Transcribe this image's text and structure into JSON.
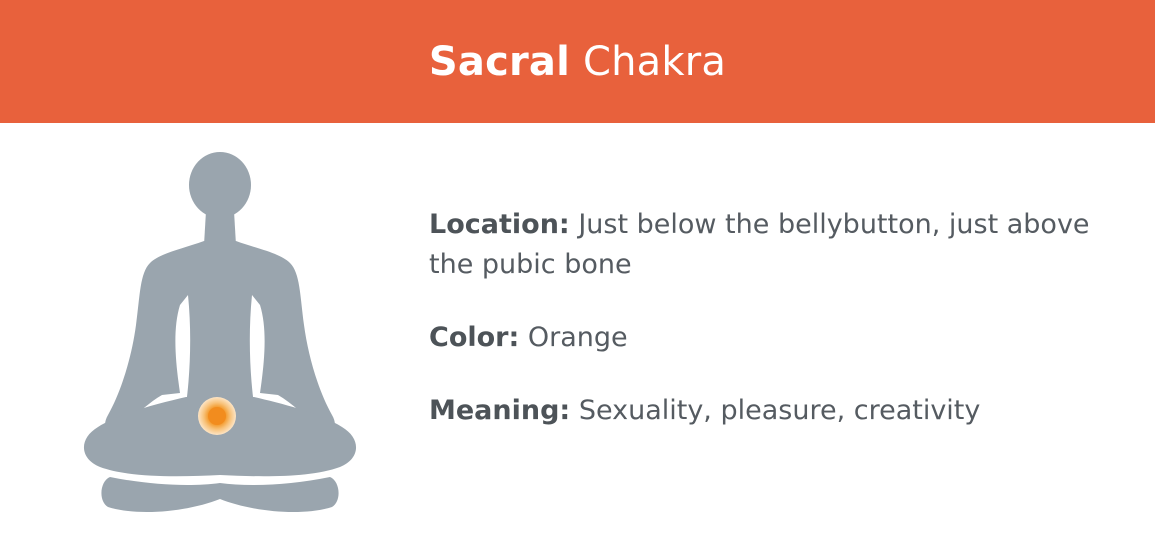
{
  "header": {
    "title_bold": "Sacral",
    "title_rest": "Chakra",
    "background_color": "#e8613c"
  },
  "figure": {
    "description_icon": "meditating-person-icon",
    "silhouette_color": "#9aa5ae",
    "chakra_color": "#f28c1e"
  },
  "info": {
    "location_label": "Location:",
    "location_value": "Just below the bellybutton, just above the pubic bone",
    "color_label": "Color:",
    "color_value": "Orange",
    "meaning_label": "Meaning:",
    "meaning_value": "Sexuality, pleasure, creativity"
  }
}
